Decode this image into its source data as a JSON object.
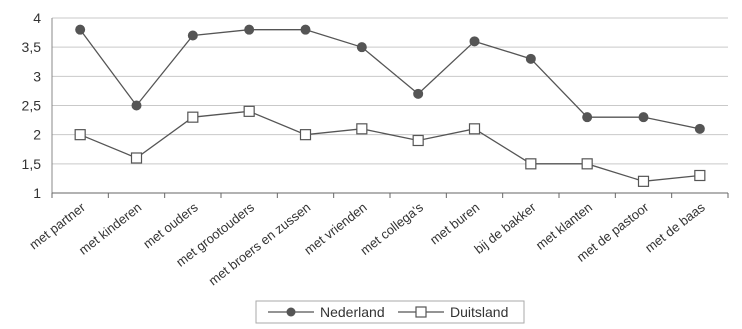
{
  "chart_data": {
    "type": "line",
    "categories": [
      "met partner",
      "met kinderen",
      "met ouders",
      "met grootouders",
      "met broers en zussen",
      "met vrienden",
      "met collega's",
      "met buren",
      "bij de bakker",
      "met klanten",
      "met de pastoor",
      "met de baas"
    ],
    "series": [
      {
        "name": "Nederland",
        "values": [
          3.8,
          2.5,
          3.7,
          3.8,
          3.8,
          3.5,
          2.7,
          3.6,
          3.3,
          2.3,
          2.3,
          2.1
        ],
        "marker": "filled-circle",
        "color": "#555555"
      },
      {
        "name": "Duitsland",
        "values": [
          2.0,
          1.6,
          2.3,
          2.4,
          2.0,
          2.1,
          1.9,
          2.1,
          1.5,
          1.5,
          1.2,
          1.3
        ],
        "marker": "open-square",
        "color": "#555555"
      }
    ],
    "ylim": [
      1,
      4
    ],
    "yticks": [
      1,
      1.5,
      2,
      2.5,
      3,
      3.5,
      4
    ],
    "ytick_labels": [
      "1",
      "1,5",
      "2",
      "2,5",
      "3",
      "3,5",
      "4"
    ],
    "grid": true,
    "legend_position": "bottom-center",
    "title": "",
    "xlabel": "",
    "ylabel": ""
  }
}
